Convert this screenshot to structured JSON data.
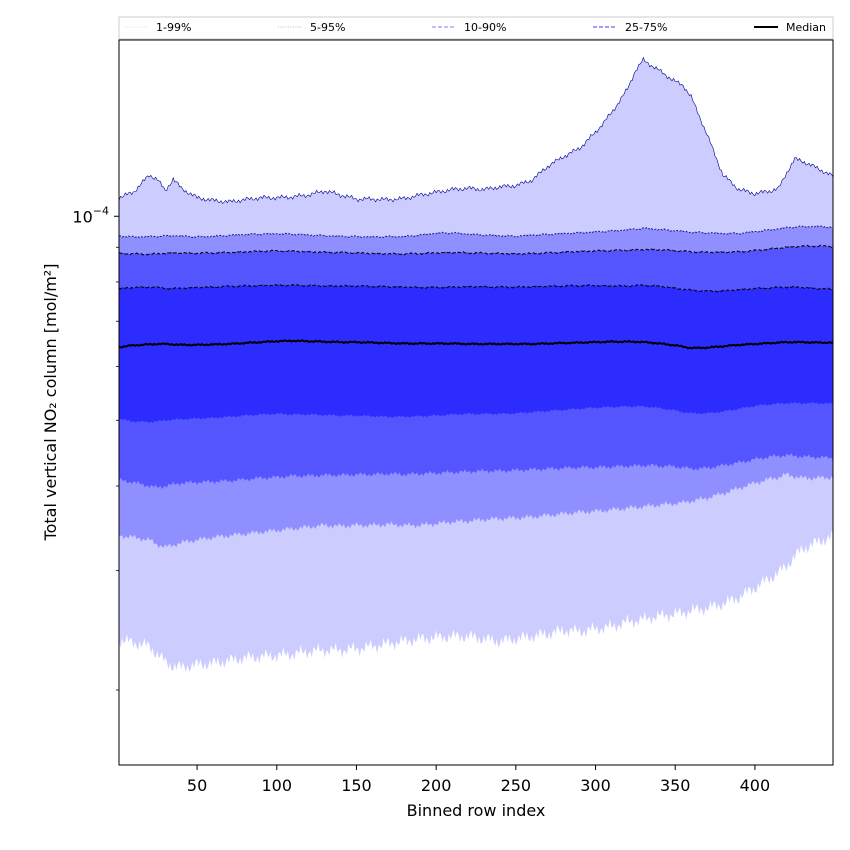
{
  "chart_data": {
    "type": "area",
    "title": "",
    "xlabel": "Binned row index",
    "ylabel": "Total vertical NO₂ column [mol/m²]",
    "xlim": [
      1,
      449
    ],
    "ylim": [
      1.55e-05,
      0.000182
    ],
    "yscale": "log",
    "xticks": [
      50,
      100,
      150,
      200,
      250,
      300,
      350,
      400
    ],
    "xtick_labels": [
      "50",
      "100",
      "150",
      "200",
      "250",
      "300",
      "350",
      "400"
    ],
    "ytick_label": {
      "value": 0.0001,
      "base": "10",
      "exponent": "−4"
    },
    "legend_position": "top, spanning full width above plot",
    "legend": [
      {
        "label": "1-99%",
        "style": "dotted",
        "color": "#dcdcf5"
      },
      {
        "label": "5-95%",
        "style": "dotted",
        "color": "#b4b4f0"
      },
      {
        "label": "10-90%",
        "style": "dashed",
        "color": "#8080ff"
      },
      {
        "label": "25-75%",
        "style": "dashed",
        "color": "#4040e0"
      },
      {
        "label": "Median",
        "style": "solid",
        "color": "#000000"
      }
    ],
    "colors": {
      "band_1_99": "#ccccff",
      "band_5_95": "#8f8fff",
      "band_10_90": "#5555ff",
      "band_25_75": "#2c2cff",
      "median": "#000000",
      "upper_line": "#00008b"
    },
    "x": [
      1,
      10,
      20,
      25,
      30,
      35,
      40,
      50,
      60,
      70,
      80,
      90,
      100,
      110,
      120,
      130,
      140,
      150,
      160,
      170,
      180,
      190,
      200,
      210,
      220,
      230,
      240,
      250,
      260,
      270,
      280,
      290,
      300,
      310,
      320,
      325,
      330,
      335,
      340,
      345,
      350,
      355,
      360,
      370,
      380,
      390,
      400,
      410,
      415,
      420,
      425,
      430,
      440,
      449
    ],
    "bands": [
      {
        "name": "1-99%",
        "lower": [
          2.37e-05,
          2.35e-05,
          2.32e-05,
          2.26e-05,
          2.2e-05,
          2.17e-05,
          2.16e-05,
          2.18e-05,
          2.19e-05,
          2.21e-05,
          2.23e-05,
          2.24e-05,
          2.25e-05,
          2.26e-05,
          2.28e-05,
          2.29e-05,
          2.29e-05,
          2.3e-05,
          2.32e-05,
          2.34e-05,
          2.36e-05,
          2.38e-05,
          2.39e-05,
          2.4e-05,
          2.4e-05,
          2.38e-05,
          2.36e-05,
          2.38e-05,
          2.4e-05,
          2.42e-05,
          2.45e-05,
          2.44e-05,
          2.46e-05,
          2.48e-05,
          2.52e-05,
          2.53e-05,
          2.54e-05,
          2.56e-05,
          2.57e-05,
          2.58e-05,
          2.59e-05,
          2.6e-05,
          2.62e-05,
          2.64e-05,
          2.68e-05,
          2.74e-05,
          2.83e-05,
          2.93e-05,
          2.98e-05,
          3.05e-05,
          3.15e-05,
          3.23e-05,
          3.31e-05,
          3.37e-05
        ],
        "upper": [
          0.0001065,
          0.0001085,
          0.000115,
          0.0001135,
          0.000109,
          0.0001135,
          0.00011,
          0.0001065,
          0.0001055,
          0.000105,
          0.0001058,
          0.0001065,
          0.0001065,
          0.0001068,
          0.0001075,
          0.000109,
          0.0001075,
          0.000106,
          0.000106,
          0.0001058,
          0.0001062,
          0.0001075,
          0.0001085,
          0.0001095,
          0.00011,
          0.0001095,
          0.0001105,
          0.000111,
          0.000113,
          0.0001185,
          0.0001225,
          0.000126,
          0.000133,
          0.000142,
          0.000154,
          0.000164,
          0.00017,
          0.000167,
          0.000164,
          0.000161,
          0.000158,
          0.000156,
          0.00015,
          0.000132,
          0.000115,
          0.0001095,
          0.000108,
          0.000109,
          0.00011,
          0.000116,
          0.0001215,
          0.0001205,
          0.0001175,
          0.0001145
        ]
      },
      {
        "name": "5-95%",
        "lower": [
          3.38e-05,
          3.36e-05,
          3.33e-05,
          3.28e-05,
          3.25e-05,
          3.27e-05,
          3.3e-05,
          3.33e-05,
          3.36e-05,
          3.38e-05,
          3.4e-05,
          3.42e-05,
          3.44e-05,
          3.46e-05,
          3.48e-05,
          3.5e-05,
          3.49e-05,
          3.5e-05,
          3.5e-05,
          3.51e-05,
          3.5e-05,
          3.5e-05,
          3.52e-05,
          3.54e-05,
          3.55e-05,
          3.57e-05,
          3.58e-05,
          3.59e-05,
          3.6e-05,
          3.62e-05,
          3.64e-05,
          3.66e-05,
          3.67e-05,
          3.69e-05,
          3.71e-05,
          3.72e-05,
          3.73e-05,
          3.74e-05,
          3.75e-05,
          3.76e-05,
          3.77e-05,
          3.78e-05,
          3.8e-05,
          3.84e-05,
          3.9e-05,
          3.97e-05,
          4.04e-05,
          4.1e-05,
          4.12e-05,
          4.16e-05,
          4.13e-05,
          4.11e-05,
          4.11e-05,
          4.12e-05
        ],
        "upper": [
          9.35e-05,
          9.32e-05,
          9.33e-05,
          9.34e-05,
          9.35e-05,
          9.36e-05,
          9.35e-05,
          9.32e-05,
          9.34e-05,
          9.37e-05,
          9.4e-05,
          9.41e-05,
          9.42e-05,
          9.41e-05,
          9.38e-05,
          9.36e-05,
          9.34e-05,
          9.33e-05,
          9.32e-05,
          9.33e-05,
          9.33e-05,
          9.38e-05,
          9.44e-05,
          9.45e-05,
          9.41e-05,
          9.38e-05,
          9.36e-05,
          9.34e-05,
          9.38e-05,
          9.4e-05,
          9.43e-05,
          9.45e-05,
          9.48e-05,
          9.51e-05,
          9.55e-05,
          9.57e-05,
          9.6e-05,
          9.58e-05,
          9.56e-05,
          9.54e-05,
          9.52e-05,
          9.5e-05,
          9.47e-05,
          9.45e-05,
          9.43e-05,
          9.43e-05,
          9.49e-05,
          9.55e-05,
          9.58e-05,
          9.62e-05,
          9.64e-05,
          9.65e-05,
          9.66e-05,
          9.63e-05
        ]
      },
      {
        "name": "10-90%",
        "lower": [
          4.08e-05,
          4.05e-05,
          4e-05,
          3.98e-05,
          4e-05,
          4.02e-05,
          4.04e-05,
          4.05e-05,
          4.06e-05,
          4.07e-05,
          4.09e-05,
          4.11e-05,
          4.12e-05,
          4.14e-05,
          4.14e-05,
          4.15e-05,
          4.15e-05,
          4.16e-05,
          4.16e-05,
          4.17e-05,
          4.16e-05,
          4.17e-05,
          4.18e-05,
          4.19e-05,
          4.2e-05,
          4.21e-05,
          4.21e-05,
          4.22e-05,
          4.23e-05,
          4.24e-05,
          4.25e-05,
          4.26e-05,
          4.26e-05,
          4.27e-05,
          4.28e-05,
          4.28e-05,
          4.29e-05,
          4.29e-05,
          4.28e-05,
          4.28e-05,
          4.27e-05,
          4.26e-05,
          4.24e-05,
          4.25e-05,
          4.29e-05,
          4.33e-05,
          4.38e-05,
          4.42e-05,
          4.43e-05,
          4.44e-05,
          4.43e-05,
          4.42e-05,
          4.41e-05,
          4.4e-05
        ],
        "upper": [
          8.82e-05,
          8.8e-05,
          8.79e-05,
          8.8e-05,
          8.82e-05,
          8.83e-05,
          8.82e-05,
          8.82e-05,
          8.83e-05,
          8.84e-05,
          8.86e-05,
          8.88e-05,
          8.89e-05,
          8.88e-05,
          8.86e-05,
          8.85e-05,
          8.84e-05,
          8.83e-05,
          8.81e-05,
          8.8e-05,
          8.8e-05,
          8.81e-05,
          8.83e-05,
          8.84e-05,
          8.83e-05,
          8.82e-05,
          8.81e-05,
          8.8e-05,
          8.81e-05,
          8.83e-05,
          8.85e-05,
          8.87e-05,
          8.89e-05,
          8.9e-05,
          8.91e-05,
          8.92e-05,
          8.93e-05,
          8.93e-05,
          8.92e-05,
          8.91e-05,
          8.9e-05,
          8.88e-05,
          8.86e-05,
          8.85e-05,
          8.85e-05,
          8.86e-05,
          8.9e-05,
          8.95e-05,
          8.97e-05,
          9e-05,
          9.02e-05,
          9.03e-05,
          9.04e-05,
          9.02e-05
        ]
      },
      {
        "name": "25-75%",
        "lower": [
          5.02e-05,
          4.98e-05,
          4.97e-05,
          4.98e-05,
          5e-05,
          5.01e-05,
          5.02e-05,
          5.03e-05,
          5.04e-05,
          5.06e-05,
          5.08e-05,
          5.1e-05,
          5.11e-05,
          5.1e-05,
          5.1e-05,
          5.09e-05,
          5.08e-05,
          5.08e-05,
          5.07e-05,
          5.06e-05,
          5.06e-05,
          5.07e-05,
          5.08e-05,
          5.1e-05,
          5.11e-05,
          5.11e-05,
          5.11e-05,
          5.12e-05,
          5.14e-05,
          5.16e-05,
          5.18e-05,
          5.2e-05,
          5.22e-05,
          5.23e-05,
          5.24e-05,
          5.24e-05,
          5.24e-05,
          5.23e-05,
          5.21e-05,
          5.19e-05,
          5.17e-05,
          5.14e-05,
          5.12e-05,
          5.12e-05,
          5.15e-05,
          5.2e-05,
          5.25e-05,
          5.28e-05,
          5.29e-05,
          5.3e-05,
          5.3e-05,
          5.3e-05,
          5.3e-05,
          5.29e-05
        ],
        "upper": [
          7.82e-05,
          7.85e-05,
          7.86e-05,
          7.85e-05,
          7.83e-05,
          7.82e-05,
          7.83e-05,
          7.85e-05,
          7.86e-05,
          7.88e-05,
          7.89e-05,
          7.9e-05,
          7.91e-05,
          7.91e-05,
          7.9e-05,
          7.89e-05,
          7.89e-05,
          7.89e-05,
          7.88e-05,
          7.87e-05,
          7.86e-05,
          7.85e-05,
          7.85e-05,
          7.86e-05,
          7.87e-05,
          7.87e-05,
          7.86e-05,
          7.86e-05,
          7.87e-05,
          7.88e-05,
          7.89e-05,
          7.9e-05,
          7.9e-05,
          7.89e-05,
          7.89e-05,
          7.9e-05,
          7.91e-05,
          7.9e-05,
          7.88e-05,
          7.86e-05,
          7.83e-05,
          7.8e-05,
          7.78e-05,
          7.75e-05,
          7.76e-05,
          7.79e-05,
          7.82e-05,
          7.84e-05,
          7.85e-05,
          7.86e-05,
          7.86e-05,
          7.85e-05,
          7.82e-05,
          7.8e-05
        ]
      }
    ],
    "median": [
      6.41e-05,
      6.45e-05,
      6.47e-05,
      6.48e-05,
      6.48e-05,
      6.47e-05,
      6.46e-05,
      6.46e-05,
      6.47e-05,
      6.48e-05,
      6.5e-05,
      6.52e-05,
      6.54e-05,
      6.55e-05,
      6.54e-05,
      6.53e-05,
      6.52e-05,
      6.52e-05,
      6.51e-05,
      6.5e-05,
      6.49e-05,
      6.49e-05,
      6.49e-05,
      6.49e-05,
      6.48e-05,
      6.48e-05,
      6.48e-05,
      6.48e-05,
      6.48e-05,
      6.49e-05,
      6.5e-05,
      6.51e-05,
      6.52e-05,
      6.53e-05,
      6.53e-05,
      6.53e-05,
      6.52e-05,
      6.51e-05,
      6.49e-05,
      6.47e-05,
      6.45e-05,
      6.42e-05,
      6.39e-05,
      6.4e-05,
      6.43e-05,
      6.46e-05,
      6.48e-05,
      6.5e-05,
      6.51e-05,
      6.52e-05,
      6.52e-05,
      6.52e-05,
      6.51e-05,
      6.51e-05
    ]
  }
}
